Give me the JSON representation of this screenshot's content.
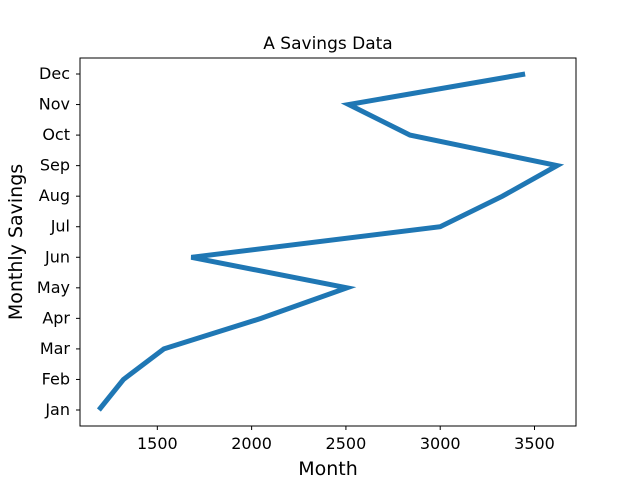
{
  "chart_data": {
    "type": "line",
    "title": "A Savings Data",
    "xlabel": "Month",
    "ylabel": "Monthly Savings",
    "categories": [
      "Jan",
      "Feb",
      "Mar",
      "Apr",
      "May",
      "Jun",
      "Jul",
      "Aug",
      "Sep",
      "Oct",
      "Nov",
      "Dec"
    ],
    "series": [
      {
        "values": [
          1190,
          1320,
          1535,
          2050,
          2505,
          1680,
          3000,
          3330,
          3620,
          2840,
          2515,
          3450
        ]
      }
    ],
    "xlim": [
      1090,
      3720
    ],
    "xticks": [
      1500,
      2000,
      2500,
      3000,
      3500
    ],
    "xtick_labels": [
      "1500",
      "2000",
      "2500",
      "3000",
      "3500"
    ],
    "grid": false,
    "line_color": "#1f77b4"
  }
}
